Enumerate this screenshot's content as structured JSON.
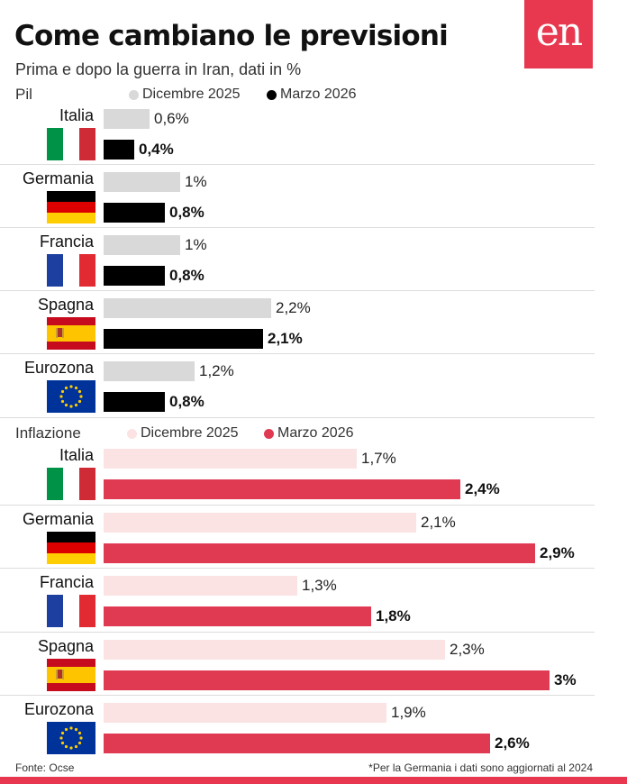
{
  "header": {
    "title": "Come cambiano le previsioni",
    "subtitle": "Prima e dopo la guerra in Iran, dati in %",
    "logo": "en"
  },
  "colors": {
    "pil_dicembre": "#d9d9d9",
    "pil_marzo": "#000000",
    "inflazione_dicembre": "#fbe3e4",
    "inflazione_marzo": "#e03a53",
    "brand": "#e8384f"
  },
  "chart_data": [
    {
      "type": "bar",
      "title": "Pil",
      "orientation": "horizontal",
      "categories": [
        "Italia",
        "Germania",
        "Francia",
        "Spagna",
        "Eurozona"
      ],
      "series": [
        {
          "name": "Dicembre 2025",
          "values": [
            0.6,
            1,
            1,
            2.2,
            1.2
          ],
          "labels": [
            "0,6%",
            "1%",
            "1%",
            "2,2%",
            "1,2%"
          ]
        },
        {
          "name": "Marzo 2026",
          "values": [
            0.4,
            0.8,
            0.8,
            2.1,
            0.8
          ],
          "labels": [
            "0,4%",
            "0,8%",
            "0,8%",
            "2,1%",
            "0,8%"
          ]
        }
      ],
      "legend_position": "top"
    },
    {
      "type": "bar",
      "title": "Inflazione",
      "orientation": "horizontal",
      "categories": [
        "Italia",
        "Germania",
        "Francia",
        "Spagna",
        "Eurozona"
      ],
      "series": [
        {
          "name": "Dicembre 2025",
          "values": [
            1.7,
            2.1,
            1.3,
            2.3,
            1.9
          ],
          "labels": [
            "1,7%",
            "2,1%",
            "1,3%",
            "2,3%",
            "1,9%"
          ]
        },
        {
          "name": "Marzo 2026",
          "values": [
            2.4,
            2.9,
            1.8,
            3,
            2.6
          ],
          "labels": [
            "2,4%",
            "2,9%",
            "1,8%",
            "3%",
            "2,6%"
          ]
        }
      ],
      "legend_position": "top"
    }
  ],
  "footer": {
    "source": "Fonte: Ocse",
    "note": "*Per la Germania i dati sono aggiornati al 2024"
  }
}
